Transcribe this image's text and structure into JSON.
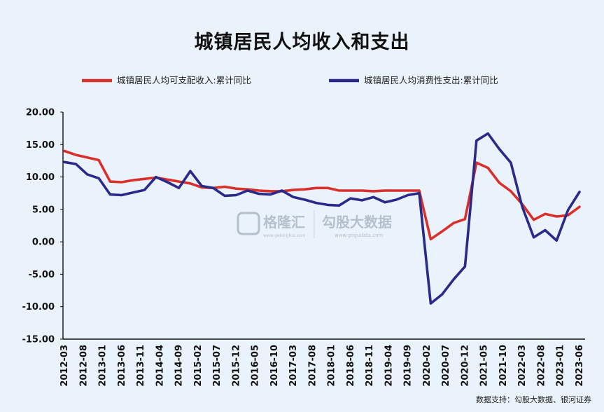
{
  "chart_data": {
    "type": "line",
    "title": "城镇居民人均收入和支出",
    "xlabel": "",
    "ylabel": "",
    "ylim": [
      -15,
      20
    ],
    "yticks": [
      "20.00",
      "15.00",
      "10.00",
      "5.00",
      "0.00",
      "-5.00",
      "-10.00",
      "-15.00"
    ],
    "legend_position": "top",
    "grid": false,
    "x": [
      "2012-03",
      "2012-06",
      "2012-09",
      "2012-12",
      "2013-03",
      "2013-06",
      "2013-09",
      "2013-12",
      "2014-03",
      "2014-06",
      "2014-09",
      "2014-12",
      "2015-03",
      "2015-06",
      "2015-09",
      "2015-12",
      "2016-03",
      "2016-06",
      "2016-09",
      "2016-12",
      "2017-03",
      "2017-06",
      "2017-09",
      "2017-12",
      "2018-03",
      "2018-06",
      "2018-09",
      "2018-12",
      "2019-03",
      "2019-06",
      "2019-09",
      "2019-12",
      "2020-03",
      "2020-06",
      "2020-09",
      "2020-12",
      "2021-03",
      "2021-06",
      "2021-09",
      "2021-12",
      "2022-03",
      "2022-06",
      "2022-09",
      "2022-12",
      "2023-03",
      "2023-06"
    ],
    "xtick_labels": [
      "2012-03",
      "2012-08",
      "2013-01",
      "2013-06",
      "2013-11",
      "2014-04",
      "2014-09",
      "2015-02",
      "2015-07",
      "2015-12",
      "2016-05",
      "2016-10",
      "2017-03",
      "2017-08",
      "2018-01",
      "2018-06",
      "2018-11",
      "2019-04",
      "2019-09",
      "2020-02",
      "2020-07",
      "2020-12",
      "2021-05",
      "2021-10",
      "2022-03",
      "2022-08",
      "2023-01",
      "2023-06"
    ],
    "series": [
      {
        "name": "城镇居民人均可支配收入:累计同比",
        "color": "#d9302c",
        "values": [
          14.0,
          13.4,
          13.0,
          12.6,
          9.3,
          9.2,
          9.5,
          9.7,
          9.9,
          9.6,
          9.3,
          9.0,
          8.4,
          8.3,
          8.5,
          8.2,
          8.1,
          7.9,
          7.8,
          7.8,
          8.0,
          8.1,
          8.3,
          8.3,
          7.9,
          7.9,
          7.9,
          7.8,
          7.9,
          7.9,
          7.9,
          7.9,
          0.4,
          1.6,
          2.9,
          3.5,
          12.2,
          11.4,
          9.1,
          7.8,
          5.8,
          3.4,
          4.3,
          3.9,
          4.1,
          5.4
        ]
      },
      {
        "name": "城镇居民人均消费性支出:累计同比",
        "color": "#2a2a8a",
        "values": [
          12.3,
          12.0,
          10.4,
          9.8,
          7.3,
          7.2,
          7.6,
          8.0,
          10.0,
          9.2,
          8.3,
          10.9,
          8.6,
          8.3,
          7.1,
          7.2,
          7.9,
          7.4,
          7.3,
          7.9,
          6.9,
          6.5,
          6.0,
          5.7,
          5.6,
          6.7,
          6.4,
          6.9,
          6.1,
          6.5,
          7.2,
          7.5,
          -9.5,
          -8.1,
          -5.8,
          -3.8,
          15.6,
          16.7,
          14.3,
          12.2,
          5.4,
          0.7,
          1.8,
          0.2,
          4.9,
          7.7
        ]
      }
    ]
  },
  "watermark": {
    "brand_cn": "格隆汇",
    "brand_en": "www.gelonghui.com",
    "data_cn": "勾股大数据",
    "data_en": "www.gogudata.com"
  },
  "footer": {
    "source": "数据支持：勾股大数据、银河证券"
  }
}
